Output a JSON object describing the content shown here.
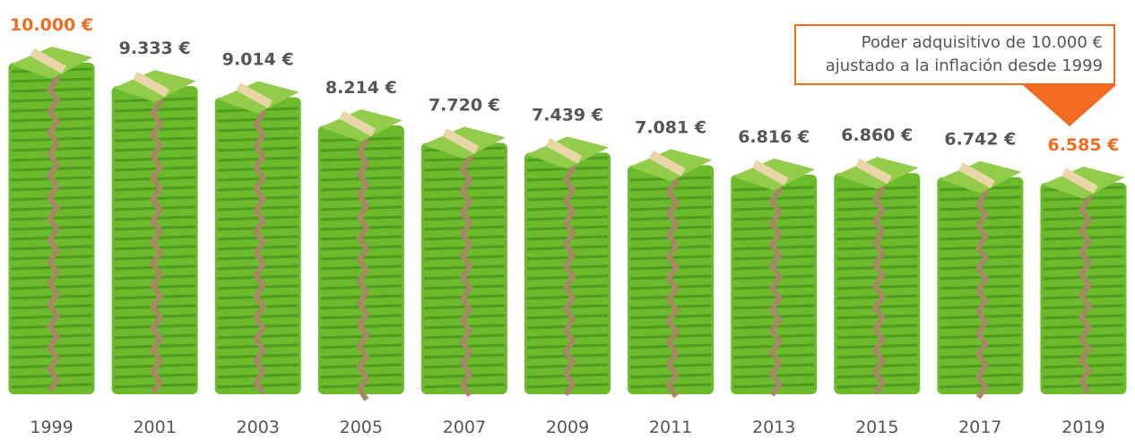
{
  "chart_data": {
    "type": "bar",
    "categories": [
      "1999",
      "2001",
      "2003",
      "2005",
      "2007",
      "2009",
      "2011",
      "2013",
      "2015",
      "2017",
      "2019"
    ],
    "values": [
      10000,
      9333,
      9014,
      8214,
      7720,
      7439,
      7081,
      6816,
      6860,
      6742,
      6585
    ],
    "value_labels": [
      "10.000 €",
      "9.333 €",
      "9.014 €",
      "8.214 €",
      "7.720 €",
      "7.439 €",
      "7.081 €",
      "6.816 €",
      "6.860 €",
      "6.742 €",
      "6.585 €"
    ],
    "highlighted": [
      "1999",
      "2019"
    ],
    "bar_style": "stacks of green banknotes",
    "annotation": {
      "line1": "Poder adquisitivo de 10.000 €",
      "line2": "ajustado a la inflación desde 1999"
    },
    "title": "",
    "xlabel": "",
    "ylabel": "",
    "grid": false,
    "colors": {
      "highlight": "#f26b21",
      "label": "#555555",
      "note_dark": "#4f9a1f",
      "note_mid": "#6cbb2c",
      "note_light": "#92cc4a",
      "band": "#e8d6a8",
      "edge_strap": "#a78866"
    }
  }
}
